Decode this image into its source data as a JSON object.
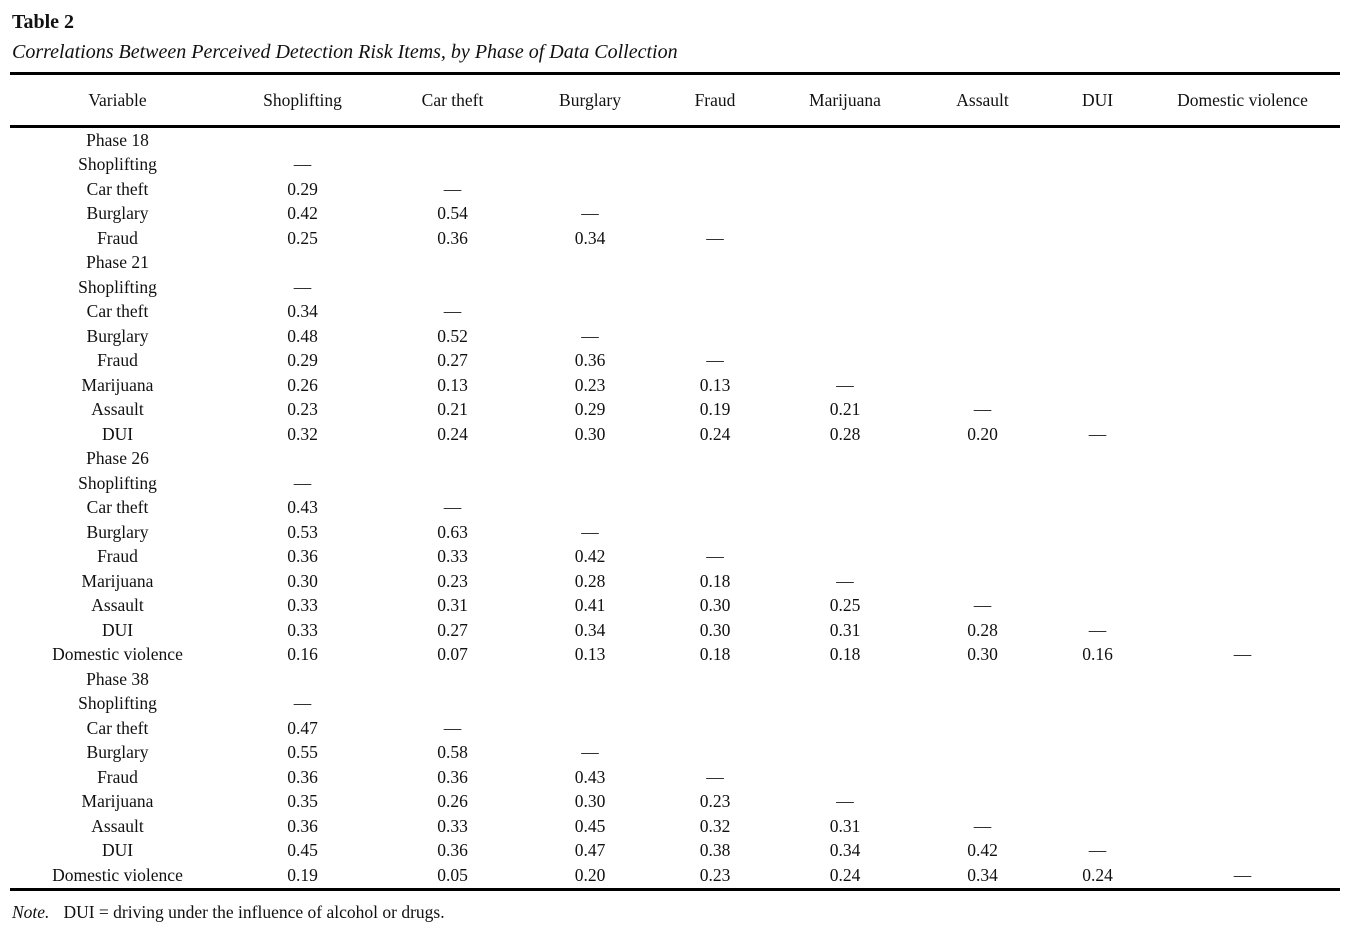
{
  "table": {
    "label": "Table 2",
    "caption": "Correlations Between Perceived Detection Risk Items, by Phase of Data Collection",
    "columns": [
      "Variable",
      "Shoplifting",
      "Car theft",
      "Burglary",
      "Fraud",
      "Marijuana",
      "Assault",
      "DUI",
      "Domestic violence"
    ],
    "sections": [
      {
        "phase": "Phase 18",
        "rows": [
          {
            "label": "Shoplifting",
            "values": [
              "—"
            ]
          },
          {
            "label": "Car theft",
            "values": [
              "0.29",
              "—"
            ]
          },
          {
            "label": "Burglary",
            "values": [
              "0.42",
              "0.54",
              "—"
            ]
          },
          {
            "label": "Fraud",
            "values": [
              "0.25",
              "0.36",
              "0.34",
              "—"
            ]
          }
        ]
      },
      {
        "phase": "Phase 21",
        "rows": [
          {
            "label": "Shoplifting",
            "values": [
              "—"
            ]
          },
          {
            "label": "Car theft",
            "values": [
              "0.34",
              "—"
            ]
          },
          {
            "label": "Burglary",
            "values": [
              "0.48",
              "0.52",
              "—"
            ]
          },
          {
            "label": "Fraud",
            "values": [
              "0.29",
              "0.27",
              "0.36",
              "—"
            ]
          },
          {
            "label": "Marijuana",
            "values": [
              "0.26",
              "0.13",
              "0.23",
              "0.13",
              "—"
            ]
          },
          {
            "label": "Assault",
            "values": [
              "0.23",
              "0.21",
              "0.29",
              "0.19",
              "0.21",
              "—"
            ]
          },
          {
            "label": "DUI",
            "values": [
              "0.32",
              "0.24",
              "0.30",
              "0.24",
              "0.28",
              "0.20",
              "—"
            ]
          }
        ]
      },
      {
        "phase": "Phase 26",
        "rows": [
          {
            "label": "Shoplifting",
            "values": [
              "—"
            ]
          },
          {
            "label": "Car theft",
            "values": [
              "0.43",
              "—"
            ]
          },
          {
            "label": "Burglary",
            "values": [
              "0.53",
              "0.63",
              "—"
            ]
          },
          {
            "label": "Fraud",
            "values": [
              "0.36",
              "0.33",
              "0.42",
              "—"
            ]
          },
          {
            "label": "Marijuana",
            "values": [
              "0.30",
              "0.23",
              "0.28",
              "0.18",
              "—"
            ]
          },
          {
            "label": "Assault",
            "values": [
              "0.33",
              "0.31",
              "0.41",
              "0.30",
              "0.25",
              "—"
            ]
          },
          {
            "label": "DUI",
            "values": [
              "0.33",
              "0.27",
              "0.34",
              "0.30",
              "0.31",
              "0.28",
              "—"
            ]
          },
          {
            "label": "Domestic violence",
            "values": [
              "0.16",
              "0.07",
              "0.13",
              "0.18",
              "0.18",
              "0.30",
              "0.16",
              "—"
            ]
          }
        ]
      },
      {
        "phase": "Phase 38",
        "rows": [
          {
            "label": "Shoplifting",
            "values": [
              "—"
            ]
          },
          {
            "label": "Car theft",
            "values": [
              "0.47",
              "—"
            ]
          },
          {
            "label": "Burglary",
            "values": [
              "0.55",
              "0.58",
              "—"
            ]
          },
          {
            "label": "Fraud",
            "values": [
              "0.36",
              "0.36",
              "0.43",
              "—"
            ]
          },
          {
            "label": "Marijuana",
            "values": [
              "0.35",
              "0.26",
              "0.30",
              "0.23",
              "—"
            ]
          },
          {
            "label": "Assault",
            "values": [
              "0.36",
              "0.33",
              "0.45",
              "0.32",
              "0.31",
              "—"
            ]
          },
          {
            "label": "DUI",
            "values": [
              "0.45",
              "0.36",
              "0.47",
              "0.38",
              "0.34",
              "0.42",
              "—"
            ]
          },
          {
            "label": "Domestic violence",
            "values": [
              "0.19",
              "0.05",
              "0.20",
              "0.23",
              "0.24",
              "0.34",
              "0.24",
              "—"
            ]
          }
        ]
      }
    ],
    "note": {
      "prefix": "Note.",
      "text": "DUI = driving under the influence of alcohol or drugs."
    }
  }
}
